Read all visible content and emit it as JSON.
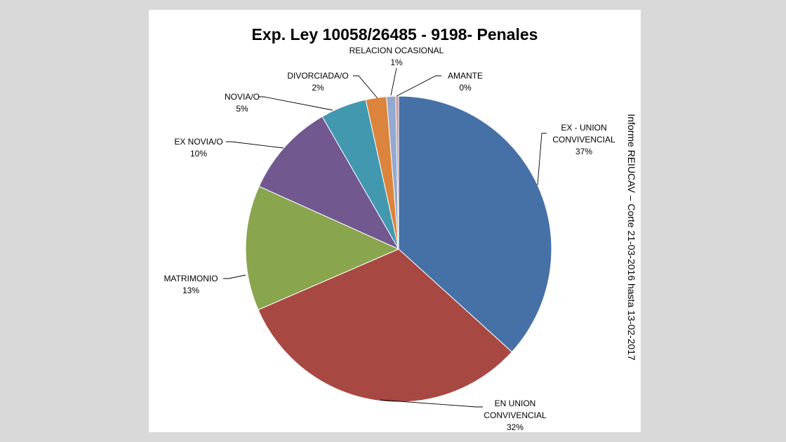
{
  "chart_data": {
    "type": "pie",
    "title": "Exp. Ley 10058/26485  - 9198- Penales",
    "side_note": "Informe REIUCAV – Corte 21-03-2016 hasta 13-02-2017",
    "slices": [
      {
        "label_lines": [
          "EX - UNION",
          "CONVIVENCIAL"
        ],
        "value": 36.93,
        "pct_label": "37%",
        "color": "#4571a6"
      },
      {
        "label_lines": [
          "EN UNION",
          "CONVIVENCIAL"
        ],
        "value": 31.93,
        "pct_label": "32%",
        "color": "#a84843"
      },
      {
        "label_lines": [
          "MATRIMONIO"
        ],
        "value": 13.3,
        "pct_label": "13%",
        "color": "#89a54e"
      },
      {
        "label_lines": [
          "EX NOVIA/O"
        ],
        "value": 10.0,
        "pct_label": "10%",
        "color": "#71588f"
      },
      {
        "label_lines": [
          "NOVIA/O"
        ],
        "value": 4.9,
        "pct_label": "5%",
        "color": "#4298af"
      },
      {
        "label_lines": [
          "DIVORCIADA/O"
        ],
        "value": 2.2,
        "pct_label": "2%",
        "color": "#db843d"
      },
      {
        "label_lines": [
          "RELACION  OCASIONAL"
        ],
        "value": 0.97,
        "pct_label": "1%",
        "color": "#93a9cf"
      },
      {
        "label_lines": [
          "AMANTE"
        ],
        "value": 0.3,
        "pct_label": "0%",
        "color": "#d19392"
      }
    ]
  }
}
